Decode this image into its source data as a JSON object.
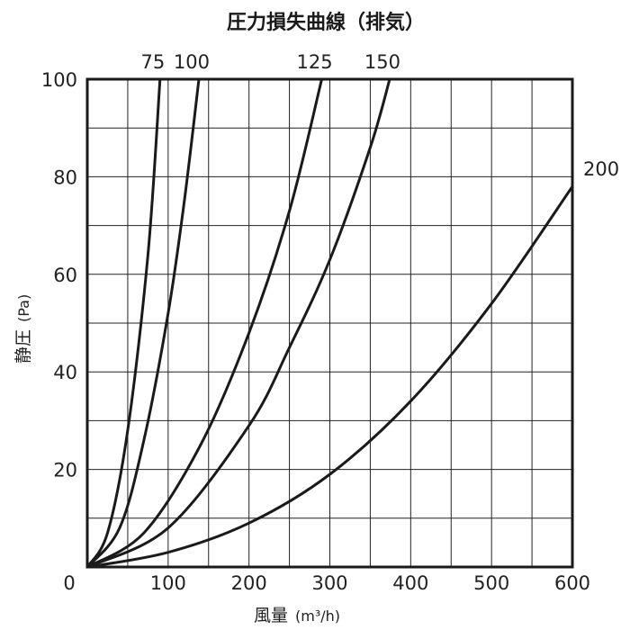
{
  "chart_data": {
    "type": "line",
    "title": "圧力損失曲線（排気）",
    "xlabel": "風量",
    "xunit": "(m³/h)",
    "ylabel": "静圧",
    "yunit": "(Pa)",
    "xlim": [
      0,
      600
    ],
    "ylim": [
      0,
      100
    ],
    "x_ticks": [
      0,
      100,
      200,
      300,
      400,
      500,
      600
    ],
    "y_ticks": [
      20,
      40,
      60,
      80,
      100
    ],
    "x_tick_labels": [
      "0",
      "100",
      "200",
      "300",
      "400",
      "500",
      "600"
    ],
    "y_tick_labels": [
      "20",
      "40",
      "60",
      "80",
      "100"
    ],
    "grid": true,
    "grid_step_x": 50,
    "grid_step_y": 10,
    "series": [
      {
        "name": "75",
        "x": [
          0,
          25,
          50,
          75,
          90
        ],
        "y": [
          0,
          7,
          28,
          64,
          100
        ]
      },
      {
        "name": "100",
        "x": [
          0,
          40,
          70,
          100,
          120,
          138
        ],
        "y": [
          0,
          8,
          26,
          52,
          75,
          100
        ]
      },
      {
        "name": "125",
        "x": [
          0,
          70,
          140,
          200,
          250,
          290
        ],
        "y": [
          0,
          7,
          25,
          48,
          73,
          100
        ]
      },
      {
        "name": "150",
        "x": [
          0,
          100,
          200,
          250,
          300,
          350,
          374
        ],
        "y": [
          0,
          8,
          29,
          45,
          63,
          86,
          100
        ]
      },
      {
        "name": "200",
        "x": [
          0,
          100,
          200,
          300,
          400,
          500,
          600
        ],
        "y": [
          0,
          3,
          9,
          19,
          34,
          54,
          78
        ]
      }
    ]
  }
}
